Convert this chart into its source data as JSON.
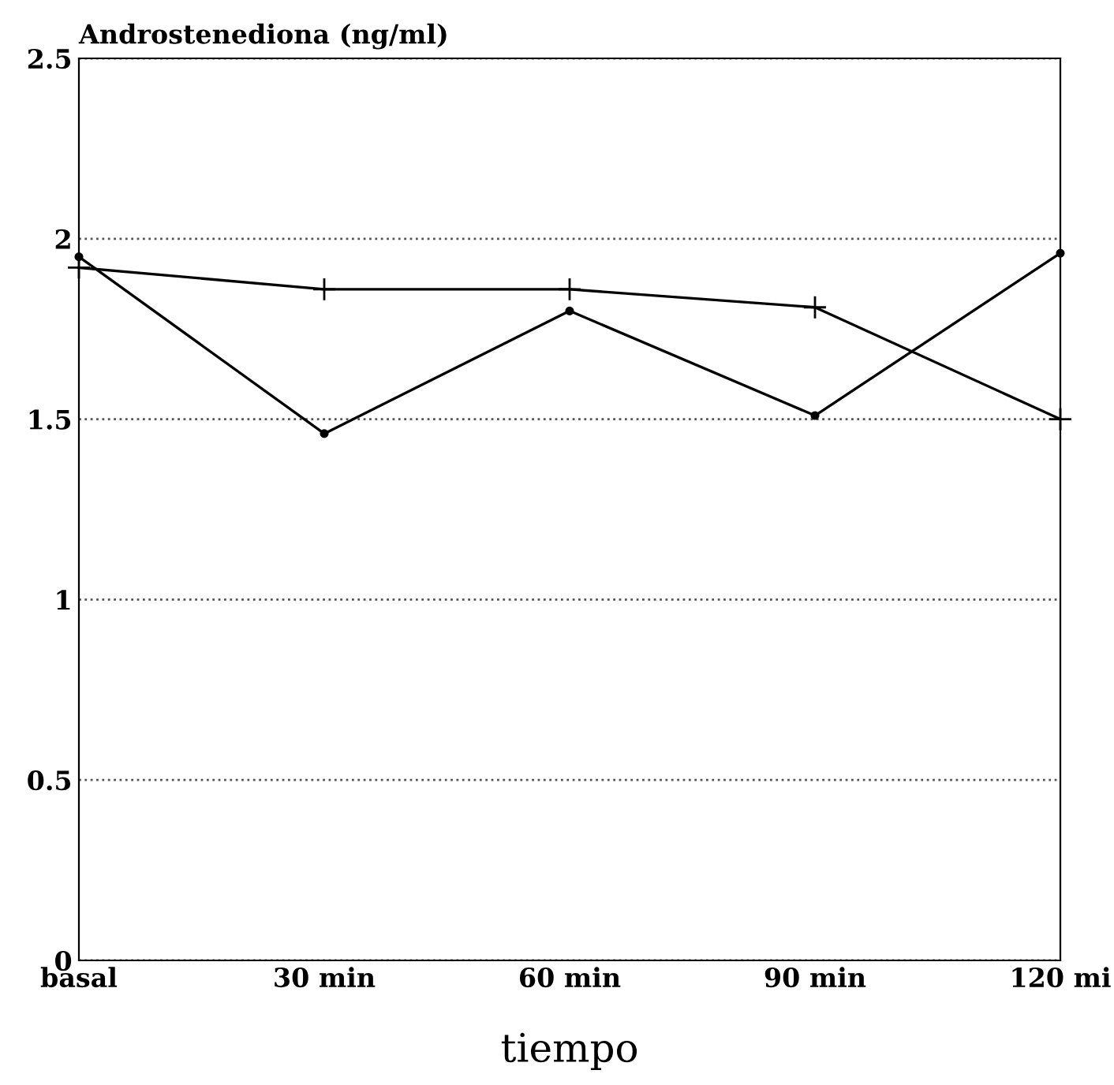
{
  "chart_data": {
    "type": "line",
    "ylabel": "Androstenediona (ng/ml)",
    "xlabel": "tiempo",
    "categories": [
      "basal",
      "30 min",
      "60 min",
      "90 min",
      "120 mi"
    ],
    "series": [
      {
        "color": "#000000",
        "marker": "cross",
        "values": [
          1.92,
          1.86,
          1.86,
          1.81,
          1.5
        ]
      },
      {
        "color": "#000000",
        "marker": "circle",
        "values": [
          1.95,
          1.46,
          1.8,
          1.51,
          1.96
        ]
      }
    ],
    "ylim": [
      0,
      2.5
    ],
    "yticks": [
      0,
      0.5,
      1,
      1.5,
      2,
      2.5
    ],
    "grid": "y",
    "line_style": "solid",
    "legend": false
  }
}
